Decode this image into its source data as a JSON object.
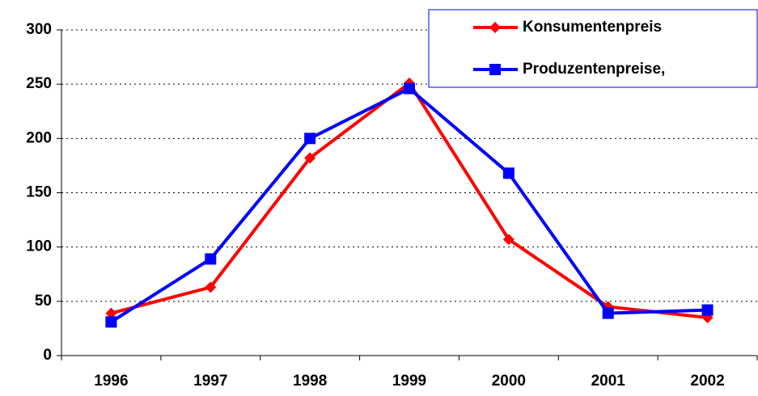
{
  "chart_data": {
    "type": "line",
    "categories": [
      "1996",
      "1997",
      "1998",
      "1999",
      "2000",
      "2001",
      "2002"
    ],
    "series": [
      {
        "name": "Konsumentenpreis",
        "color": "#ff0000",
        "marker": "diamond",
        "values": [
          39,
          63,
          182,
          251,
          107,
          45,
          35
        ]
      },
      {
        "name": "Produzentenpreise,",
        "color": "#0000ff",
        "marker": "square",
        "values": [
          31,
          89,
          200,
          246,
          168,
          39,
          42
        ]
      }
    ],
    "ylim": [
      0,
      300
    ],
    "yticks": [
      0,
      50,
      100,
      150,
      200,
      250,
      300
    ],
    "grid": true,
    "legend": "top-right"
  }
}
